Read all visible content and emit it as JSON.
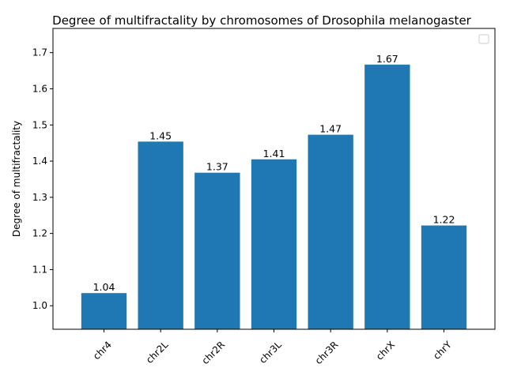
{
  "chart_data": {
    "type": "bar",
    "title": "Degree of multifractality by chromosomes of Drosophila melanogaster",
    "xlabel": "",
    "ylabel": "Degree of multifractality",
    "categories": [
      "chr4",
      "chr2L",
      "chr2R",
      "chr3L",
      "chr3R",
      "chrX",
      "chrY"
    ],
    "values": [
      1.035,
      1.454,
      1.368,
      1.405,
      1.473,
      1.667,
      1.222
    ],
    "data_labels": [
      "1.04",
      "1.45",
      "1.37",
      "1.41",
      "1.47",
      "1.67",
      "1.22"
    ],
    "ylim": [
      0.935,
      1.767
    ],
    "yticks": [
      1.0,
      1.1,
      1.2,
      1.3,
      1.4,
      1.5,
      1.6,
      1.7
    ],
    "ytick_labels": [
      "1.0",
      "1.1",
      "1.2",
      "1.3",
      "1.4",
      "1.5",
      "1.6",
      "1.7"
    ],
    "bar_color": "#1f77b4",
    "grid": false,
    "legend": {
      "placement": "top-right",
      "entries": []
    }
  }
}
